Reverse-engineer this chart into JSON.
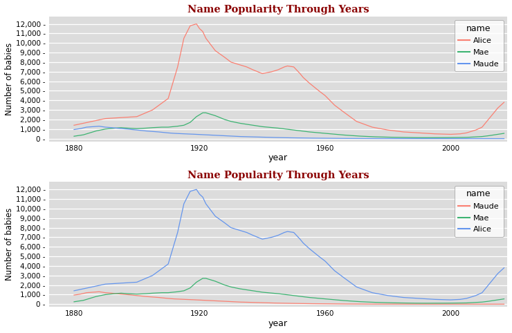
{
  "title": "Name Popularity Through Years",
  "xlabel": "year",
  "ylabel": "Number of babies",
  "bg_color": "#DCDCDC",
  "grid_color": "white",
  "title_color": "#8B0000",
  "plot1_legend_order": [
    "Alice",
    "Mae",
    "Maude"
  ],
  "plot1_colors": {
    "Alice": "#FA8072",
    "Mae": "#3CB371",
    "Maude": "#6495ED"
  },
  "plot2_legend_order": [
    "Maude",
    "Mae",
    "Alice"
  ],
  "plot2_colors": {
    "Maude": "#FA8072",
    "Mae": "#3CB371",
    "Alice": "#6495ED"
  },
  "legend_title": "name",
  "yticks": [
    0,
    1000,
    2000,
    3000,
    4000,
    5000,
    6000,
    7000,
    8000,
    9000,
    10000,
    11000,
    12000
  ],
  "xticks": [
    1880,
    1920,
    1960,
    2000
  ],
  "xlim": [
    1872,
    2018
  ],
  "ylim": [
    -300,
    12800
  ]
}
